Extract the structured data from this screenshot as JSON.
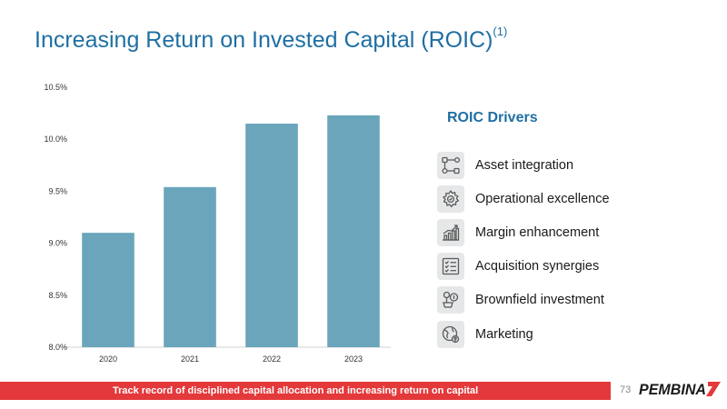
{
  "slide": {
    "title": "Increasing Return on Invested Capital (ROIC)",
    "title_footnote": "(1)",
    "page_number": "73",
    "footer_text": "Track record of disciplined capital allocation and increasing return on capital",
    "logo_text": "PEMBINA"
  },
  "drivers": {
    "title": "ROIC Drivers",
    "items": [
      {
        "label": "Asset integration",
        "icon": "asset-integration-icon"
      },
      {
        "label": "Operational excellence",
        "icon": "gear-icon"
      },
      {
        "label": "Margin enhancement",
        "icon": "growth-chart-icon"
      },
      {
        "label": "Acquisition synergies",
        "icon": "checklist-icon"
      },
      {
        "label": "Brownfield investment",
        "icon": "investment-icon"
      },
      {
        "label": "Marketing",
        "icon": "marketing-globe-icon"
      }
    ]
  },
  "colors": {
    "title": "#1f6fa3",
    "bar": "#6aa5bb",
    "footer_bar": "#e4393b",
    "icon_bg": "#e6e7e8",
    "logo_red": "#e4393b"
  },
  "chart_data": {
    "type": "bar",
    "categories": [
      "2020",
      "2021",
      "2022",
      "2023"
    ],
    "values": [
      9.1,
      9.54,
      10.15,
      10.23
    ],
    "ylim": [
      8.0,
      10.5
    ],
    "yticks": [
      "8.0%",
      "8.5%",
      "9.0%",
      "9.5%",
      "10.0%",
      "10.5%"
    ],
    "ytick_values": [
      8.0,
      8.5,
      9.0,
      9.5,
      10.0,
      10.5
    ],
    "grid": false
  }
}
